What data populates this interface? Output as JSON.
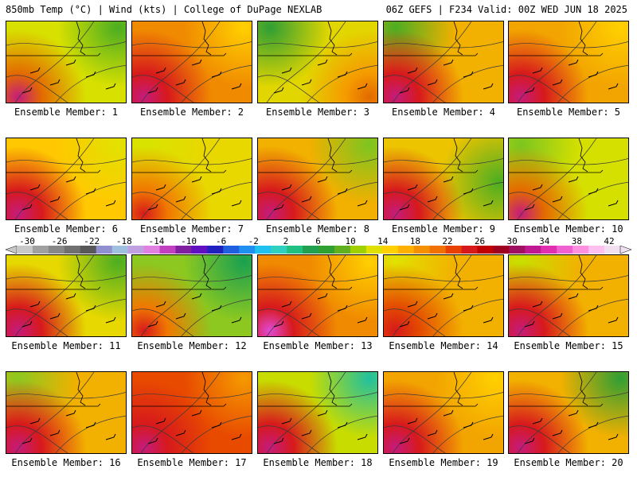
{
  "header": {
    "left": "850mb Temp (°C) | Wind (kts) | College of DuPage NEXLAB",
    "right": "06Z GEFS | F234 Valid: 00Z WED JUN 18 2025"
  },
  "panels": [
    {
      "label": "Ensemble Member: 1",
      "base": "#d8e000",
      "hot": "#e36a00",
      "core": "#c51b7d",
      "cool": "#4bae22",
      "hot_corner": "bl",
      "cool_corner": "tr"
    },
    {
      "label": "Ensemble Member: 2",
      "base": "#f08a00",
      "hot": "#d7191c",
      "core": "#c51b7d",
      "cool": "#ffd000",
      "hot_corner": "bl",
      "cool_corner": "tr"
    },
    {
      "label": "Ensemble Member: 3",
      "base": "#e2d600",
      "hot": "#f59a00",
      "core": "#e36a00",
      "cool": "#2f9e34",
      "hot_corner": "br",
      "cool_corner": "tl"
    },
    {
      "label": "Ensemble Member: 4",
      "base": "#f2b000",
      "hot": "#d7191c",
      "core": "#c51b7d",
      "cool": "#4bae22",
      "hot_corner": "bl",
      "cool_corner": "tl"
    },
    {
      "label": "Ensemble Member: 5",
      "base": "#f2a400",
      "hot": "#d7191c",
      "core": "#c51b7d",
      "cool": "#ffd000",
      "hot_corner": "bl",
      "cool_corner": "tr"
    },
    {
      "label": "Ensemble Member: 6",
      "base": "#ffc800",
      "hot": "#d7191c",
      "core": "#c51b7d",
      "cool": "#e2e200",
      "hot_corner": "bl",
      "cool_corner": "tr"
    },
    {
      "label": "Ensemble Member: 7",
      "base": "#e8d800",
      "hot": "#f07800",
      "core": "#d7191c",
      "cool": "#d8e400",
      "hot_corner": "bl",
      "cool_corner": "tl"
    },
    {
      "label": "Ensemble Member: 8",
      "base": "#f2b000",
      "hot": "#d7191c",
      "core": "#c51b7d",
      "cool": "#7cc520",
      "hot_corner": "bl",
      "cool_corner": "tr"
    },
    {
      "label": "Ensemble Member: 9",
      "base": "#ecc400",
      "hot": "#d7191c",
      "core": "#c51b7d",
      "cool": "#4bae22",
      "hot_corner": "bl",
      "cool_corner": "r"
    },
    {
      "label": "Ensemble Member: 10",
      "base": "#d6e000",
      "hot": "#e36a00",
      "core": "#c51b7d",
      "cool": "#7cc520",
      "hot_corner": "bl",
      "cool_corner": "tl"
    },
    {
      "label": "Ensemble Member: 11",
      "base": "#e6d800",
      "hot": "#d7191c",
      "core": "#c51b7d",
      "cool": "#4bae22",
      "hot_corner": "bl",
      "cool_corner": "tr"
    },
    {
      "label": "Ensemble Member: 12",
      "base": "#8cc820",
      "hot": "#f07800",
      "core": "#d7191c",
      "cool": "#1aa050",
      "hot_corner": "bl",
      "cool_corner": "tr"
    },
    {
      "label": "Ensemble Member: 13",
      "base": "#f08a00",
      "hot": "#d7191c",
      "core": "#e04ad8",
      "cool": "#ffd000",
      "hot_corner": "bl",
      "cool_corner": "tr"
    },
    {
      "label": "Ensemble Member: 14",
      "base": "#f2b000",
      "hot": "#e34a00",
      "core": "#d7191c",
      "cool": "#e2e200",
      "hot_corner": "bl",
      "cool_corner": "tl"
    },
    {
      "label": "Ensemble Member: 15",
      "base": "#f2b000",
      "hot": "#d7191c",
      "core": "#c51b7d",
      "cool": "#c8e000",
      "hot_corner": "bl",
      "cool_corner": "tl"
    },
    {
      "label": "Ensemble Member: 16",
      "base": "#f2b000",
      "hot": "#d7191c",
      "core": "#c51b7d",
      "cool": "#8cc820",
      "hot_corner": "bl",
      "cool_corner": "tl"
    },
    {
      "label": "Ensemble Member: 17",
      "base": "#e84a00",
      "hot": "#d7191c",
      "core": "#c51b7d",
      "cool": "#f59a00",
      "hot_corner": "bl",
      "cool_corner": "tr"
    },
    {
      "label": "Ensemble Member: 18",
      "base": "#c8dc00",
      "hot": "#d7191c",
      "core": "#c51b7d",
      "cool": "#20c0a0",
      "hot_corner": "bl",
      "cool_corner": "tr"
    },
    {
      "label": "Ensemble Member: 19",
      "base": "#f2a400",
      "hot": "#d7191c",
      "core": "#c51b7d",
      "cool": "#ffd000",
      "hot_corner": "bl",
      "cool_corner": "tr"
    },
    {
      "label": "Ensemble Member: 20",
      "base": "#f2b000",
      "hot": "#d7191c",
      "core": "#c51b7d",
      "cool": "#2f9e34",
      "hot_corner": "bl",
      "cool_corner": "tr"
    }
  ],
  "colorbar": {
    "labels": [
      "-30",
      "-26",
      "-22",
      "-18",
      "-14",
      "-10",
      "-6",
      "-2",
      "2",
      "6",
      "10",
      "14",
      "18",
      "22",
      "26",
      "30",
      "34",
      "38",
      "42"
    ],
    "colors": [
      "#c8c8c8",
      "#a0a0a0",
      "#888888",
      "#707070",
      "#585858",
      "#9090d0",
      "#a0c0e0",
      "#c0a0e0",
      "#e080e0",
      "#c040c0",
      "#8020a0",
      "#6010c0",
      "#2020c0",
      "#2060e0",
      "#2090f0",
      "#20c0f0",
      "#30d0c0",
      "#20c080",
      "#20a050",
      "#30a030",
      "#60b020",
      "#a0d000",
      "#e0e000",
      "#ffd000",
      "#ffb000",
      "#f59000",
      "#f07000",
      "#e84000",
      "#d7191c",
      "#c00000",
      "#a00020",
      "#a01060",
      "#c01890",
      "#e030b0",
      "#f060d0",
      "#ff90e0",
      "#ffc0f0",
      "#f0e0f0"
    ]
  }
}
